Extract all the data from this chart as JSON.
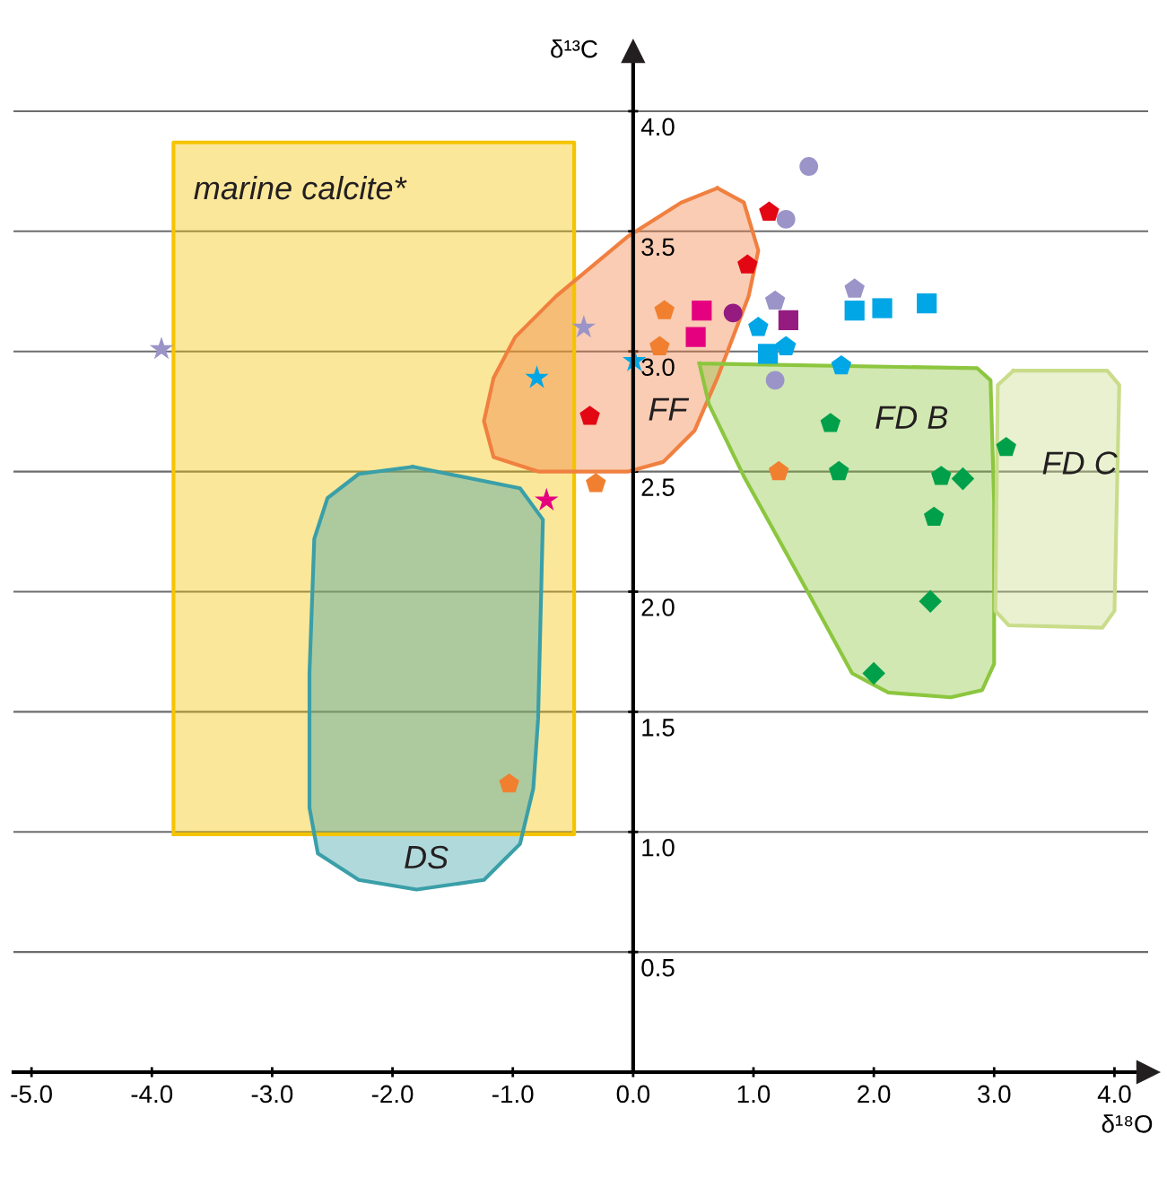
{
  "chart_data": {
    "type": "scatter",
    "xlabel": "δ¹⁸O",
    "ylabel": "δ¹³C",
    "xlim": [
      -5.15,
      4.28
    ],
    "ylim": [
      0,
      4.25
    ],
    "xticks": [
      {
        "value": -5,
        "label": "-5.0"
      },
      {
        "value": -4,
        "label": "-4.0"
      },
      {
        "value": -3,
        "label": "-3.0"
      },
      {
        "value": -2,
        "label": "-2.0"
      },
      {
        "value": -1,
        "label": "-1.0"
      },
      {
        "value": 0,
        "label": "0.0"
      },
      {
        "value": 1,
        "label": "1.0"
      },
      {
        "value": 2,
        "label": "2.0"
      },
      {
        "value": 3,
        "label": "3.0"
      },
      {
        "value": 4,
        "label": "4.0"
      }
    ],
    "yticks": [
      0.5,
      {
        "value": 1,
        "label": "1.0"
      },
      1.5,
      {
        "value": 2,
        "label": "2.0"
      },
      2.5,
      {
        "value": 3,
        "label": "3.0"
      },
      3.5,
      {
        "value": 4,
        "label": "4.0"
      }
    ],
    "grid": "y",
    "series": [
      {
        "type": "area",
        "color": "#f5c400",
        "x": [
          -3.82,
          -0.49,
          -0.49,
          -3.82,
          -3.82
        ],
        "values": [
          0.99,
          0.99,
          3.87,
          3.87,
          0.99
        ]
      },
      {
        "type": "area",
        "color": "#3a9fa8",
        "x": [
          -1.83,
          -0.94,
          -0.75,
          -0.79,
          -0.83,
          -0.94,
          -1.24,
          -1.8,
          -2.28,
          -2.62,
          -2.69,
          -2.69,
          -2.65,
          -2.54,
          -2.28,
          -1.83
        ],
        "values": [
          2.52,
          2.43,
          2.3,
          1.47,
          1.18,
          0.95,
          0.8,
          0.76,
          0.8,
          0.91,
          1.1,
          1.66,
          2.22,
          2.39,
          2.49,
          2.52
        ]
      },
      {
        "type": "area",
        "color": "#f08040",
        "x": [
          0.7,
          0.92,
          1.04,
          0.96,
          0.7,
          0.51,
          0.25,
          -0.04,
          -0.79,
          -1.16,
          -1.24,
          -1.16,
          -0.98,
          -0.64,
          -0.04,
          0.4,
          0.7
        ],
        "values": [
          3.68,
          3.62,
          3.42,
          3.23,
          2.89,
          2.67,
          2.54,
          2.5,
          2.5,
          2.56,
          2.71,
          2.89,
          3.06,
          3.23,
          3.48,
          3.62,
          3.68
        ]
      },
      {
        "type": "area",
        "color": "#8cc63f",
        "x": [
          0.55,
          2.86,
          2.97,
          3.0,
          3.0,
          2.9,
          2.64,
          2.12,
          1.82,
          1.45,
          0.92,
          0.63,
          0.55
        ],
        "values": [
          2.95,
          2.93,
          2.88,
          2.37,
          1.7,
          1.59,
          1.56,
          1.58,
          1.66,
          2.0,
          2.48,
          2.78,
          2.95
        ]
      },
      {
        "type": "area",
        "color": "#c9dc8a",
        "x": [
          3.16,
          3.94,
          4.04,
          4.0,
          3.9,
          3.12,
          3.01,
          3.03,
          3.16
        ],
        "values": [
          2.92,
          2.92,
          2.86,
          1.92,
          1.85,
          1.86,
          1.92,
          2.86,
          2.92
        ]
      },
      {
        "color": "#9b94c8",
        "marker": "star",
        "x": [
          -3.92,
          -0.41
        ],
        "values": [
          3.01,
          3.1
        ]
      },
      {
        "color": "#00a6e6",
        "marker": "star",
        "x": [
          -0.8,
          0.01
        ],
        "values": [
          2.89,
          2.96
        ]
      },
      {
        "color": "#e4007f",
        "marker": "star",
        "x": [
          -0.72
        ],
        "values": [
          2.38
        ]
      },
      {
        "color": "#e30613",
        "x": [
          1.13,
          0.95,
          -0.36
        ],
        "values": [
          3.58,
          3.36,
          2.73
        ]
      },
      {
        "color": "#f08030",
        "x": [
          0.26,
          0.22,
          -0.31,
          1.21,
          -1.03
        ],
        "values": [
          3.17,
          3.02,
          2.45,
          2.5,
          1.2
        ]
      },
      {
        "color": "#9b94c8",
        "marker": "circle",
        "x": [
          1.46,
          1.27,
          1.18
        ],
        "values": [
          3.77,
          3.55,
          2.88
        ]
      },
      {
        "color": "#9b94c8",
        "x": [
          1.18,
          1.84
        ],
        "values": [
          3.21,
          3.26
        ]
      },
      {
        "color": "#e4007f",
        "marker": "square",
        "x": [
          0.57,
          0.52
        ],
        "values": [
          3.17,
          3.06
        ]
      },
      {
        "color": "#951b81",
        "marker": "circle",
        "x": [
          0.83
        ],
        "values": [
          3.16
        ]
      },
      {
        "color": "#951b81",
        "marker": "square",
        "x": [
          1.29
        ],
        "values": [
          3.13
        ]
      },
      {
        "color": "#00a6e6",
        "marker": "square",
        "x": [
          1.84,
          2.07,
          2.44,
          1.12
        ],
        "values": [
          3.17,
          3.18,
          3.2,
          2.99
        ]
      },
      {
        "color": "#00a6e6",
        "x": [
          1.04,
          1.27,
          1.73
        ],
        "values": [
          3.1,
          3.02,
          2.94
        ]
      },
      {
        "color": "#00a04a",
        "x": [
          1.64,
          1.71,
          2.56,
          2.5,
          3.1
        ],
        "values": [
          2.7,
          2.5,
          2.48,
          2.31,
          2.6
        ]
      },
      {
        "color": "#00a04a",
        "marker": "diamond",
        "x": [
          2.74,
          2.47,
          2.0
        ],
        "values": [
          2.47,
          1.96,
          1.66
        ]
      }
    ],
    "annotations": [
      "marine calcite*",
      "DS",
      "FF",
      "FD B",
      "FD C"
    ]
  }
}
